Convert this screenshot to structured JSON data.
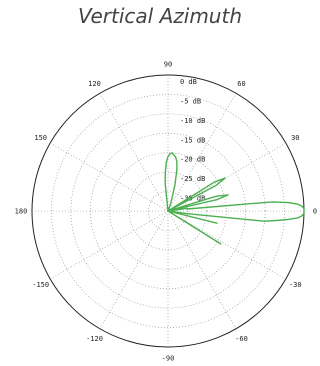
{
  "chart_data": {
    "type": "polar-line",
    "title": "Vertical Azimuth",
    "angle_ticks": [
      "0",
      "30",
      "60",
      "90",
      "120",
      "150",
      "180",
      "-150",
      "-120",
      "-90",
      "-60",
      "-30"
    ],
    "ring_labels": [
      "0 dB",
      "-5 dB",
      "-10 dB",
      "-15 dB",
      "-20 dB",
      "-25 dB",
      "-30 dB"
    ],
    "r_range_db": [
      -35,
      0
    ],
    "ring_step_db": 5,
    "grid": true,
    "series": [
      {
        "color": "#4caf50",
        "angles_deg": [
          -180,
          -90,
          -60,
          -40,
          -32,
          -25,
          -20,
          -14,
          -10,
          -8,
          -6,
          -5,
          -4,
          -3,
          -2,
          -1,
          0,
          1,
          2,
          3,
          4,
          5,
          6,
          8,
          10,
          13,
          15,
          17,
          20,
          25,
          28,
          30,
          32,
          35,
          40,
          50,
          60,
          65,
          70,
          75,
          78,
          80,
          82,
          84,
          86,
          88,
          90,
          92,
          94,
          96,
          100,
          105,
          110,
          120,
          150,
          180
        ],
        "gain_db": [
          -35,
          -35,
          -35,
          -35,
          -19,
          -35,
          -35,
          -22,
          -35,
          -30,
          -10,
          -7,
          -4,
          -1.5,
          -0.5,
          0,
          0,
          0,
          -0.5,
          -1.5,
          -4,
          -8,
          -30,
          -30,
          -35,
          -22,
          -19,
          -22,
          -35,
          -35,
          -21,
          -18,
          -21,
          -35,
          -35,
          -35,
          -35,
          -35,
          -33,
          -28,
          -24,
          -22,
          -21,
          -20.5,
          -20,
          -20.3,
          -21,
          -22.5,
          -25,
          -28,
          -35,
          -35,
          -35,
          -35,
          -35,
          -35
        ]
      }
    ]
  },
  "colors": {
    "trace": "#4caf50",
    "grid": "#888888",
    "outer_circle": "#222222"
  }
}
